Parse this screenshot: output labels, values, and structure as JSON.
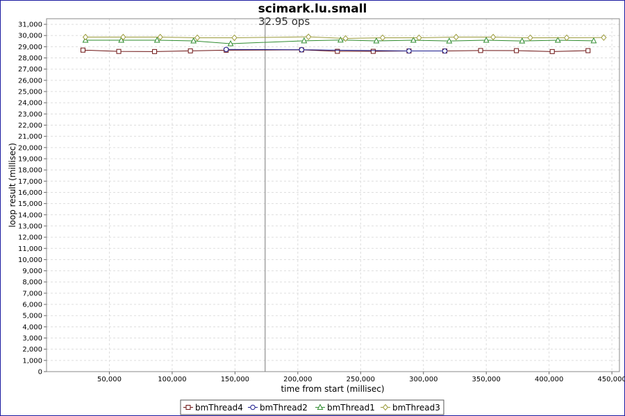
{
  "chart_data": {
    "type": "line",
    "title": "scimark.lu.small",
    "xlabel": "time from start (millisec)",
    "ylabel": "loop result (millisec)",
    "xlim": [
      0,
      456000
    ],
    "ylim": [
      0,
      31500
    ],
    "x_ticks": [
      50000,
      100000,
      150000,
      200000,
      250000,
      300000,
      350000,
      400000,
      450000
    ],
    "y_ticks": [
      0,
      1000,
      2000,
      3000,
      4000,
      5000,
      6000,
      7000,
      8000,
      9000,
      10000,
      11000,
      12000,
      13000,
      14000,
      15000,
      16000,
      17000,
      18000,
      19000,
      20000,
      21000,
      22000,
      23000,
      24000,
      25000,
      26000,
      27000,
      28000,
      29000,
      30000,
      31000
    ],
    "grid": true,
    "legend_position": "bottom",
    "annotation": {
      "text": "32.95 ops",
      "x": 174000
    },
    "series": [
      {
        "name": "bmThread4",
        "color": "#6b1010",
        "marker": "square",
        "points": [
          [
            29000,
            28700
          ],
          [
            57500,
            28580
          ],
          [
            86000,
            28570
          ],
          [
            114500,
            28630
          ],
          [
            143000,
            28690
          ],
          [
            203000,
            28720
          ],
          [
            231500,
            28590
          ],
          [
            260000,
            28590
          ],
          [
            288500,
            28620
          ],
          [
            317000,
            28620
          ],
          [
            345500,
            28660
          ],
          [
            374000,
            28650
          ],
          [
            402500,
            28570
          ],
          [
            431000,
            28650
          ]
        ]
      },
      {
        "name": "bmThread2",
        "color": "#1a1a8c",
        "marker": "circle",
        "points": [
          [
            143000,
            28760
          ],
          [
            203000,
            28730
          ],
          [
            288500,
            28620
          ],
          [
            317000,
            28620
          ]
        ]
      },
      {
        "name": "bmThread1",
        "color": "#2e8b2e",
        "marker": "triangle",
        "points": [
          [
            31000,
            29580
          ],
          [
            59500,
            29580
          ],
          [
            88000,
            29580
          ],
          [
            117000,
            29520
          ],
          [
            146500,
            29270
          ],
          [
            205000,
            29530
          ],
          [
            234000,
            29600
          ],
          [
            262500,
            29520
          ],
          [
            292000,
            29580
          ],
          [
            320500,
            29510
          ],
          [
            350000,
            29580
          ],
          [
            378500,
            29510
          ],
          [
            407000,
            29580
          ],
          [
            435500,
            29530
          ]
        ]
      },
      {
        "name": "bmThread3",
        "color": "#9a9a3a",
        "marker": "diamond",
        "points": [
          [
            31000,
            29860
          ],
          [
            61000,
            29860
          ],
          [
            90500,
            29860
          ],
          [
            120000,
            29800
          ],
          [
            149500,
            29800
          ],
          [
            208500,
            29880
          ],
          [
            238000,
            29740
          ],
          [
            267500,
            29800
          ],
          [
            296500,
            29800
          ],
          [
            326000,
            29860
          ],
          [
            355500,
            29860
          ],
          [
            385000,
            29800
          ],
          [
            414000,
            29800
          ],
          [
            443500,
            29820
          ]
        ]
      }
    ]
  }
}
